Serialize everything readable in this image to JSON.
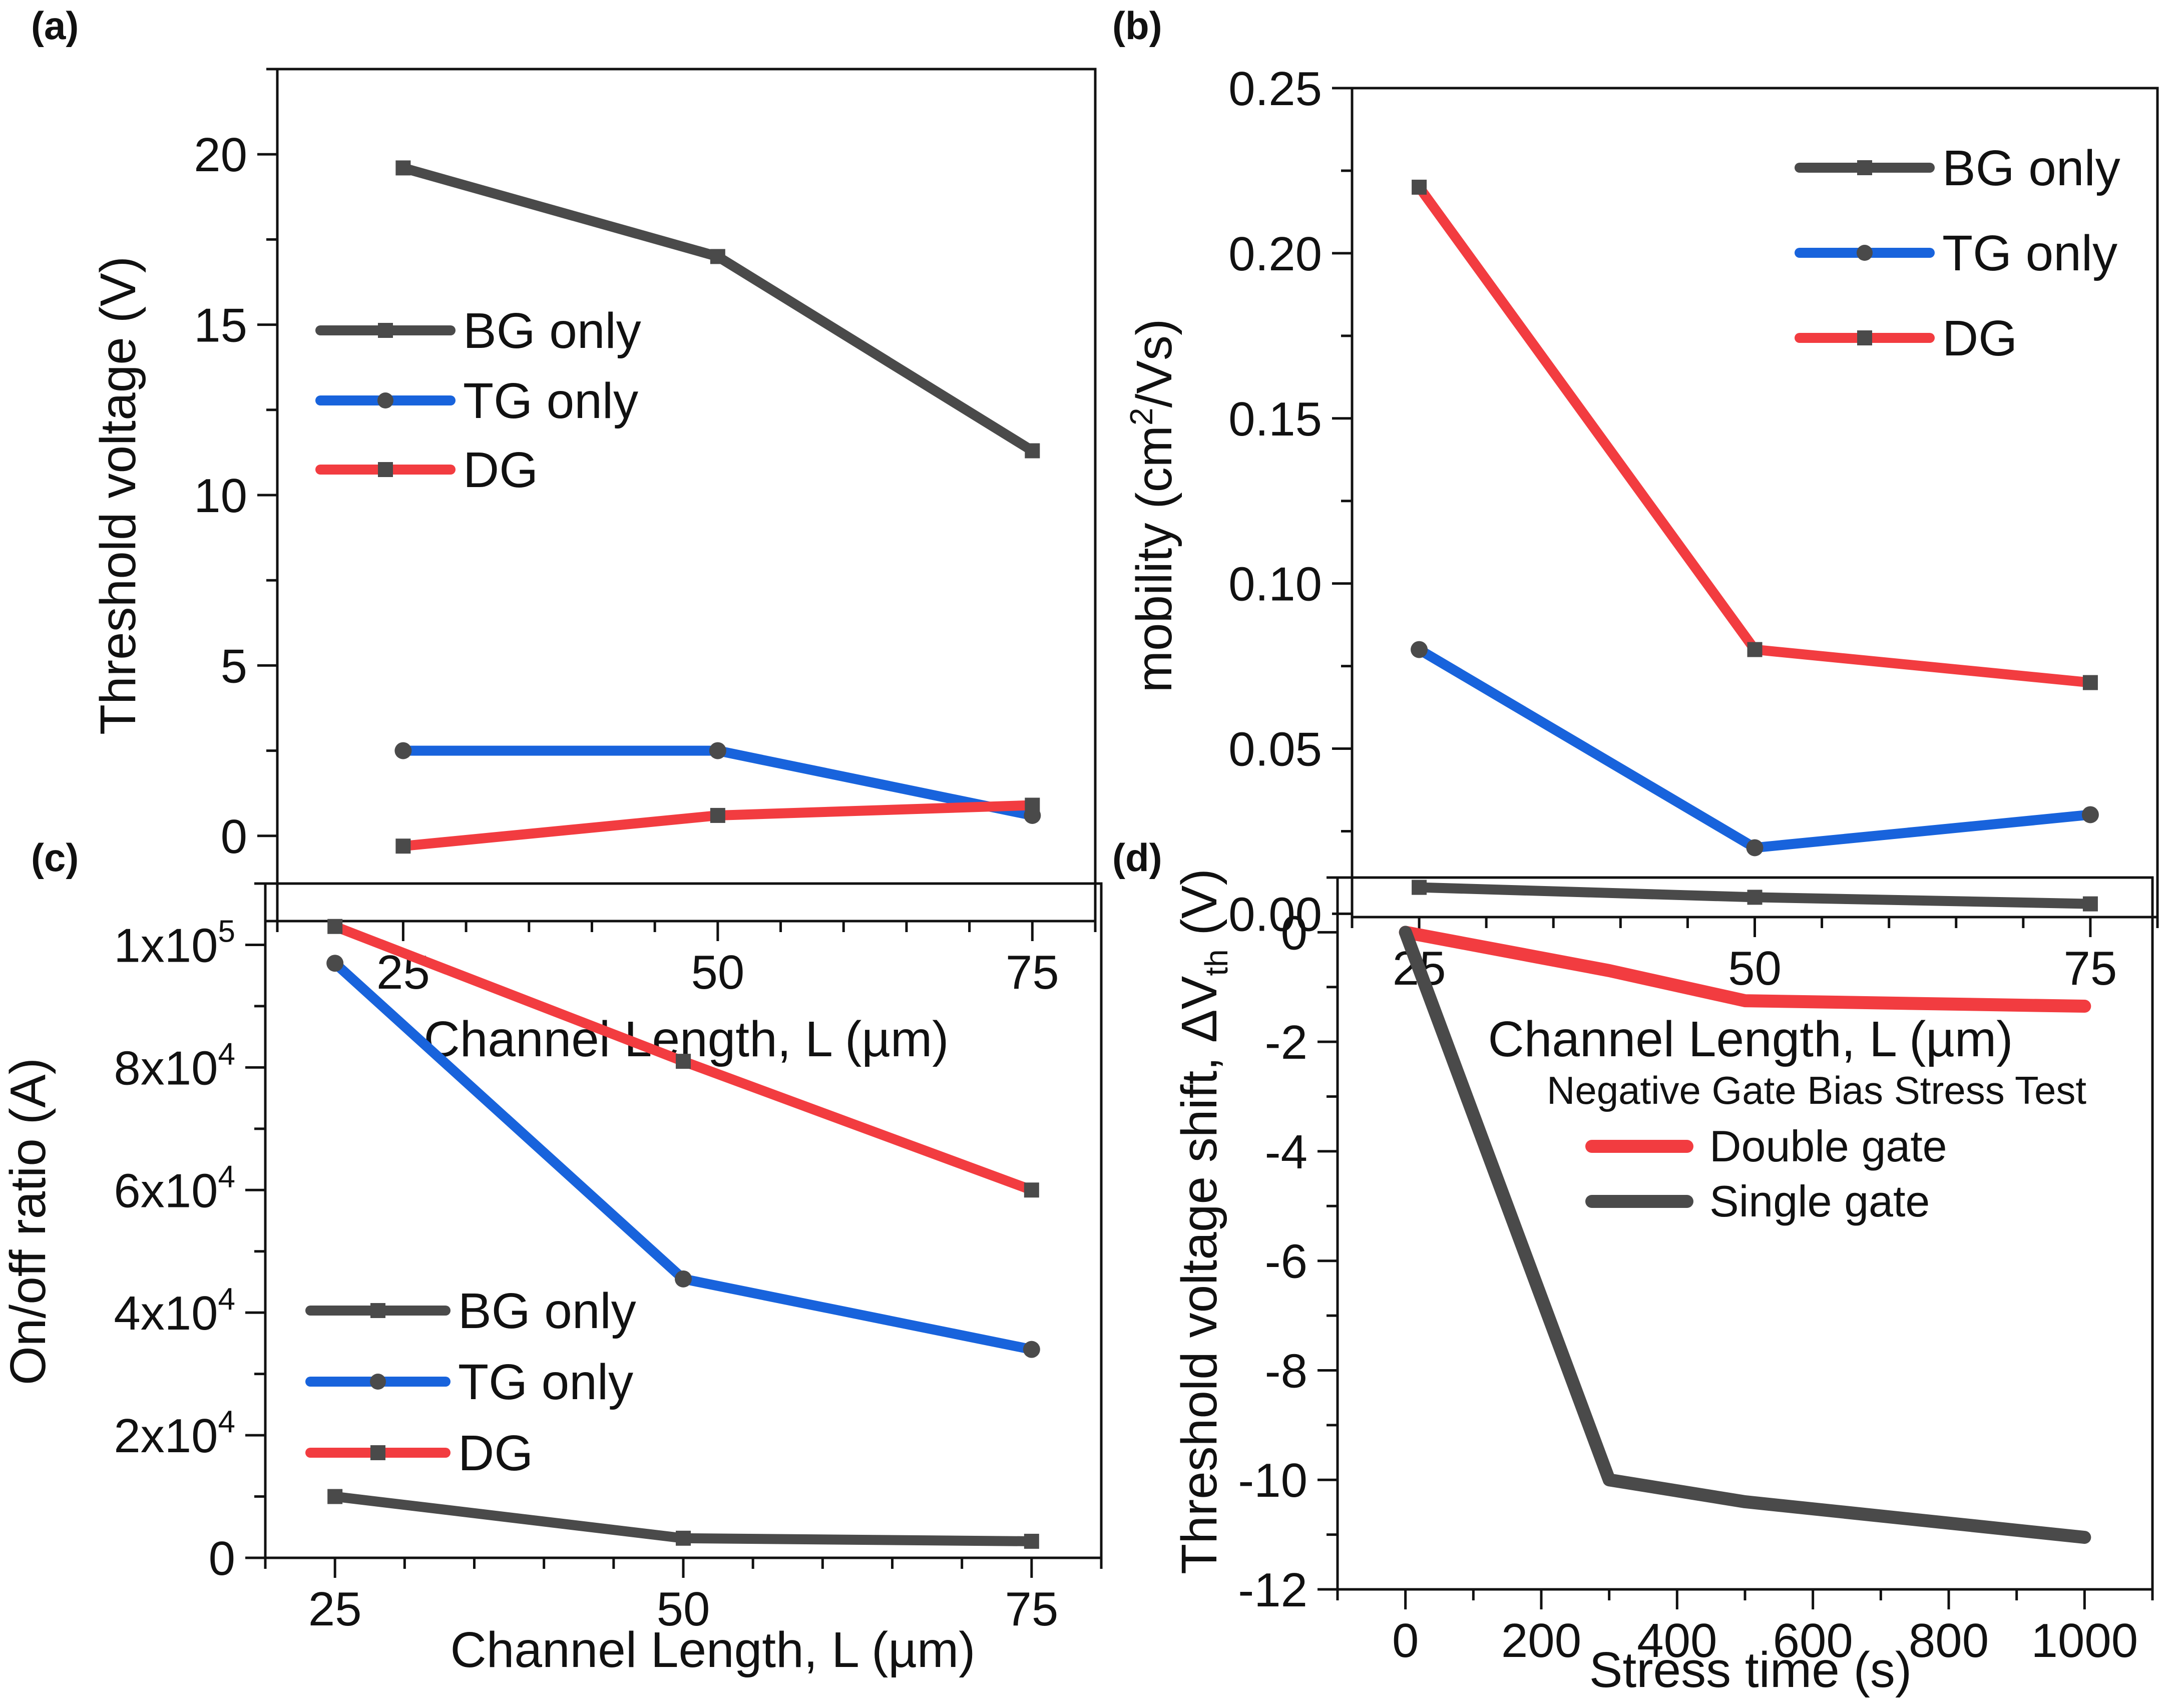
{
  "figure": {
    "panel_labels": [
      "(a)",
      "(b)",
      "(c)",
      "(d)"
    ]
  },
  "colors": {
    "BG only": "#4a4a4a",
    "TG only": "#1863dc",
    "DG": "#f23c40",
    "Double gate": "#f23c40",
    "Single gate": "#4a4a4a",
    "marker": "#4a4a4a",
    "axis": "#111111"
  },
  "chart_data": [
    {
      "id": "a",
      "type": "line",
      "panel_label": "(a)",
      "title": "",
      "xlabel": "Channel Length, L (µm)",
      "ylabel": "Threshold voltage (V)",
      "x": [
        25,
        50,
        75
      ],
      "xlim": [
        15,
        80
      ],
      "ylim": [
        -2.5,
        22.5
      ],
      "xticks": [
        25,
        50,
        75
      ],
      "xtick_labels": [
        "25",
        "50",
        "75"
      ],
      "xminor": 5,
      "yticks": [
        0,
        5,
        10,
        15,
        20
      ],
      "ytick_labels": [
        "0",
        "5",
        "10",
        "15",
        "20"
      ],
      "yminor": 2.5,
      "grid": false,
      "legend_position": "center-left",
      "series": [
        {
          "name": "BG only",
          "marker": "square",
          "values": [
            19.6,
            17.0,
            11.3
          ]
        },
        {
          "name": "TG only",
          "marker": "circle",
          "values": [
            2.5,
            2.5,
            0.6
          ]
        },
        {
          "name": "DG",
          "marker": "square",
          "values": [
            -0.3,
            0.6,
            0.9
          ]
        }
      ]
    },
    {
      "id": "b",
      "type": "line",
      "panel_label": "(b)",
      "title": "",
      "xlabel": "Channel Length, L (µm)",
      "ylabel": "mobility (cm²/Vs)",
      "x": [
        25,
        50,
        75
      ],
      "xlim": [
        20,
        80
      ],
      "ylim": [
        -0.001,
        0.25
      ],
      "xticks": [
        25,
        50,
        75
      ],
      "xtick_labels": [
        "25",
        "50",
        "75"
      ],
      "xminor": 5,
      "yticks": [
        0,
        0.05,
        0.1,
        0.15,
        0.2,
        0.25
      ],
      "ytick_labels": [
        "0.00",
        "0.05",
        "0.10",
        "0.15",
        "0.20",
        "0.25"
      ],
      "yminor": 0.025,
      "grid": false,
      "legend_position": "top-right",
      "series": [
        {
          "name": "BG only",
          "marker": "square",
          "values": [
            0.008,
            0.005,
            0.003
          ]
        },
        {
          "name": "TG only",
          "marker": "circle",
          "values": [
            0.08,
            0.02,
            0.03
          ]
        },
        {
          "name": "DG",
          "marker": "square",
          "values": [
            0.22,
            0.08,
            0.07
          ]
        }
      ]
    },
    {
      "id": "c",
      "type": "line",
      "panel_label": "(c)",
      "title": "",
      "xlabel": "Channel Length, L (µm)",
      "ylabel": "On/off ratio (A)",
      "x": [
        25,
        50,
        75
      ],
      "xlim": [
        20,
        80
      ],
      "ylim": [
        0,
        110000
      ],
      "xticks": [
        25,
        50,
        75
      ],
      "xtick_labels": [
        "25",
        "50",
        "75"
      ],
      "xminor": 5,
      "yticks": [
        0,
        20000,
        40000,
        60000,
        80000,
        100000
      ],
      "ytick_labels": [
        "0",
        "2x10^4",
        "4x10^4",
        "6x10^4",
        "8x10^4",
        "1x10^5"
      ],
      "yminor": 10000,
      "grid": false,
      "legend_position": "bottom-left",
      "series": [
        {
          "name": "BG only",
          "marker": "square",
          "values": [
            10000,
            3200,
            2700
          ]
        },
        {
          "name": "TG only",
          "marker": "circle",
          "values": [
            97000,
            45500,
            34000
          ]
        },
        {
          "name": "DG",
          "marker": "square",
          "values": [
            103000,
            81000,
            60000
          ]
        }
      ]
    },
    {
      "id": "d",
      "type": "line",
      "panel_label": "(d)",
      "title": "",
      "xlabel": "Stress time (s)",
      "ylabel": "Threshold voltage shift, ΔV_th (V)",
      "xlim": [
        -100,
        1100
      ],
      "ylim": [
        -12,
        1
      ],
      "xticks": [
        0,
        200,
        400,
        600,
        800,
        1000
      ],
      "xtick_labels": [
        "0",
        "200",
        "400",
        "600",
        "800",
        "1000"
      ],
      "xminor": 100,
      "yticks": [
        0,
        -2,
        -4,
        -6,
        -8,
        -10,
        -12
      ],
      "ytick_labels": [
        "0",
        "-2",
        "-4",
        "-6",
        "-8",
        "-10",
        "-12"
      ],
      "yminor": 1,
      "grid": false,
      "legend_title": "Negative Gate Bias Stress Test",
      "legend_position": "center-right",
      "series": [
        {
          "name": "Double gate",
          "marker": "none",
          "x": [
            0,
            300,
            500,
            1000
          ],
          "values": [
            0,
            -0.7,
            -1.25,
            -1.35
          ]
        },
        {
          "name": "Single gate",
          "marker": "none",
          "x": [
            0,
            300,
            500,
            1000
          ],
          "values": [
            0,
            -10.0,
            -10.4,
            -11.05
          ]
        }
      ]
    }
  ]
}
